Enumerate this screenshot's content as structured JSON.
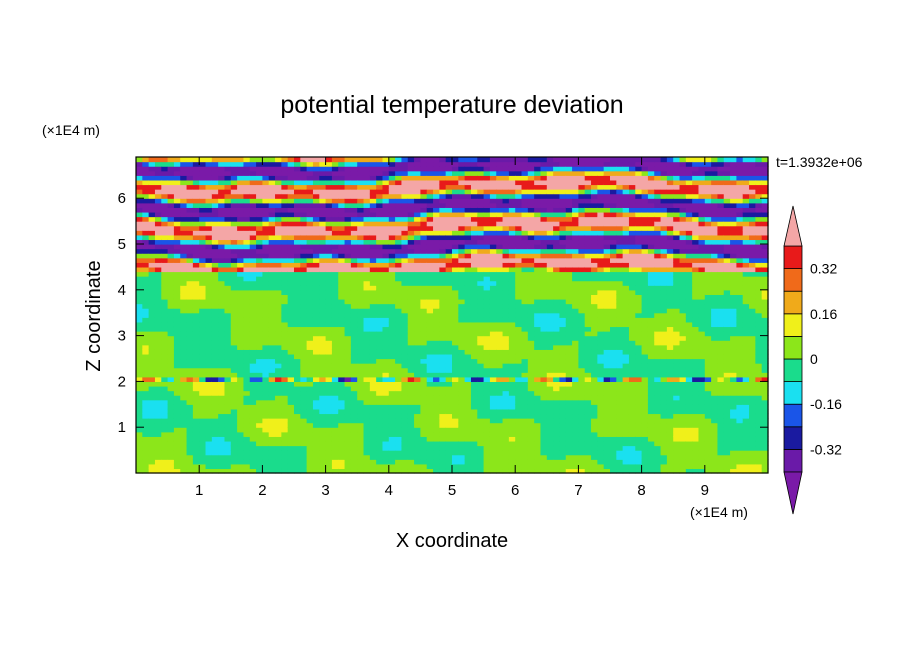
{
  "chart_data": {
    "type": "heatmap",
    "title": "potential temperature deviation",
    "xlabel": "X coordinate",
    "ylabel": "Z coordinate",
    "x_unit": "(×1E4 m)",
    "y_unit": "(×1E4 m)",
    "time_label": "t=1.3932e+06",
    "xlim": [
      0,
      10
    ],
    "ylim": [
      0,
      6.9
    ],
    "x_ticks": [
      "1",
      "2",
      "3",
      "4",
      "5",
      "6",
      "7",
      "8",
      "9"
    ],
    "y_ticks": [
      "1",
      "2",
      "3",
      "4",
      "5",
      "6"
    ],
    "colorbar": {
      "levels": [
        -0.4,
        -0.32,
        -0.24,
        -0.16,
        -0.08,
        0,
        0.08,
        0.16,
        0.24,
        0.32,
        0.4
      ],
      "tick_labels": [
        "-0.32",
        "-0.16",
        "0",
        "0.16",
        "0.32"
      ],
      "tick_values": [
        -0.32,
        -0.16,
        0,
        0.16,
        0.32
      ],
      "under_color": "#7a1aa8",
      "over_color": "#f4a6a6",
      "colors": [
        "#6a1aa8",
        "#1a1aa0",
        "#1a55e8",
        "#1ae0f0",
        "#1adc8c",
        "#8ce61a",
        "#f0f01a",
        "#f0aa1a",
        "#f06a1a",
        "#e81a1a"
      ]
    },
    "regions": [
      {
        "z_range": [
          0,
          2.0
        ],
        "dominant": "green/lime",
        "values_range": [
          -0.08,
          0.08
        ]
      },
      {
        "z_range": [
          2.0,
          2.1
        ],
        "dominant": "thin disturbed layer",
        "values_range": [
          -0.4,
          0.3
        ]
      },
      {
        "z_range": [
          2.1,
          4.4
        ],
        "dominant": "green/lime",
        "values_range": [
          -0.08,
          0.08
        ]
      },
      {
        "z_range": [
          4.4,
          6.9
        ],
        "dominant": "alternating purple and pink bands",
        "values_range": [
          -0.4,
          0.4
        ]
      }
    ]
  }
}
